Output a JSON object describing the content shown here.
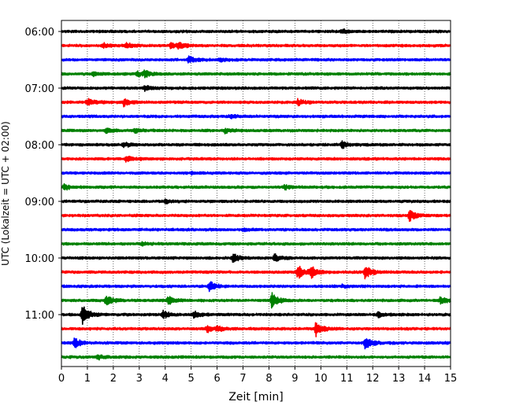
{
  "chart_data": {
    "type": "line",
    "title": "",
    "xlabel": "Zeit  [min]",
    "ylabel": "UTC (Lokalzeit = UTC + 02:00)",
    "xlim": [
      0,
      15
    ],
    "x_ticks": [
      0,
      1,
      2,
      3,
      4,
      5,
      6,
      7,
      8,
      9,
      10,
      11,
      12,
      13,
      14,
      15
    ],
    "y_tick_labels": [
      "06:00",
      "07:00",
      "08:00",
      "09:00",
      "10:00",
      "11:00"
    ],
    "grid": "vertical dotted",
    "legend": "none",
    "trace_colors": [
      "#000000",
      "#ff0000",
      "#0000ff",
      "#008000"
    ],
    "series": [
      {
        "start": "06:00",
        "color": "#000000",
        "events": [
          {
            "x": 10.8,
            "amp": 0.25
          }
        ]
      },
      {
        "start": "06:15",
        "color": "#ff0000",
        "events": [
          {
            "x": 1.6,
            "amp": 0.35
          },
          {
            "x": 2.5,
            "amp": 0.3
          },
          {
            "x": 4.2,
            "amp": 0.35
          },
          {
            "x": 4.5,
            "amp": 0.4
          }
        ]
      },
      {
        "start": "06:30",
        "color": "#0000ff",
        "events": [
          {
            "x": 4.9,
            "amp": 0.5
          },
          {
            "x": 6.1,
            "amp": 0.25
          }
        ]
      },
      {
        "start": "06:45",
        "color": "#008000",
        "events": [
          {
            "x": 1.2,
            "amp": 0.3
          },
          {
            "x": 2.9,
            "amp": 0.3
          },
          {
            "x": 3.2,
            "amp": 0.35
          }
        ]
      },
      {
        "start": "07:00",
        "color": "#000000",
        "events": [
          {
            "x": 3.2,
            "amp": 0.3
          }
        ]
      },
      {
        "start": "07:15",
        "color": "#ff0000",
        "events": [
          {
            "x": 1.0,
            "amp": 0.5
          },
          {
            "x": 2.4,
            "amp": 0.45
          },
          {
            "x": 9.1,
            "amp": 0.4
          }
        ]
      },
      {
        "start": "07:30",
        "color": "#0000ff",
        "events": [
          {
            "x": 6.5,
            "amp": 0.2
          }
        ]
      },
      {
        "start": "07:45",
        "color": "#008000",
        "events": [
          {
            "x": 1.7,
            "amp": 0.3
          },
          {
            "x": 2.8,
            "amp": 0.3
          },
          {
            "x": 6.3,
            "amp": 0.3
          }
        ]
      },
      {
        "start": "08:00",
        "color": "#000000",
        "events": [
          {
            "x": 2.4,
            "amp": 0.3
          },
          {
            "x": 10.8,
            "amp": 0.45
          }
        ]
      },
      {
        "start": "08:15",
        "color": "#ff0000",
        "events": [
          {
            "x": 2.5,
            "amp": 0.45
          }
        ]
      },
      {
        "start": "08:30",
        "color": "#0000ff",
        "events": [
          {
            "x": 5.0,
            "amp": 0.15
          }
        ]
      },
      {
        "start": "08:45",
        "color": "#008000",
        "events": [
          {
            "x": 0.1,
            "amp": 0.35
          },
          {
            "x": 8.6,
            "amp": 0.25
          }
        ]
      },
      {
        "start": "09:00",
        "color": "#000000",
        "events": [
          {
            "x": 4.0,
            "amp": 0.2
          }
        ]
      },
      {
        "start": "09:15",
        "color": "#ff0000",
        "events": [
          {
            "x": 13.4,
            "amp": 0.7
          }
        ]
      },
      {
        "start": "09:30",
        "color": "#0000ff",
        "events": [
          {
            "x": 7.0,
            "amp": 0.15
          }
        ]
      },
      {
        "start": "09:45",
        "color": "#008000",
        "events": [
          {
            "x": 3.1,
            "amp": 0.2
          }
        ]
      },
      {
        "start": "10:00",
        "color": "#000000",
        "events": [
          {
            "x": 6.6,
            "amp": 0.6
          },
          {
            "x": 8.2,
            "amp": 0.5
          }
        ]
      },
      {
        "start": "10:15",
        "color": "#ff0000",
        "events": [
          {
            "x": 9.1,
            "amp": 0.9
          },
          {
            "x": 9.6,
            "amp": 0.75
          },
          {
            "x": 11.7,
            "amp": 0.8
          }
        ]
      },
      {
        "start": "10:30",
        "color": "#0000ff",
        "events": [
          {
            "x": 5.7,
            "amp": 0.6
          },
          {
            "x": 10.8,
            "amp": 0.2
          }
        ]
      },
      {
        "start": "10:45",
        "color": "#008000",
        "events": [
          {
            "x": 1.7,
            "amp": 0.6
          },
          {
            "x": 4.1,
            "amp": 0.5
          },
          {
            "x": 8.1,
            "amp": 1.0
          },
          {
            "x": 14.6,
            "amp": 0.5
          }
        ]
      },
      {
        "start": "11:00",
        "color": "#000000",
        "events": [
          {
            "x": 0.8,
            "amp": 1.3
          },
          {
            "x": 3.9,
            "amp": 0.5
          },
          {
            "x": 5.1,
            "amp": 0.4
          },
          {
            "x": 12.2,
            "amp": 0.3
          }
        ]
      },
      {
        "start": "11:15",
        "color": "#ff0000",
        "events": [
          {
            "x": 5.6,
            "amp": 0.45
          },
          {
            "x": 6.0,
            "amp": 0.3
          },
          {
            "x": 9.8,
            "amp": 1.0
          }
        ]
      },
      {
        "start": "11:30",
        "color": "#0000ff",
        "events": [
          {
            "x": 0.5,
            "amp": 0.55
          },
          {
            "x": 11.7,
            "amp": 1.0
          }
        ]
      },
      {
        "start": "11:45",
        "color": "#008000",
        "events": [
          {
            "x": 1.4,
            "amp": 0.3
          }
        ]
      }
    ]
  }
}
